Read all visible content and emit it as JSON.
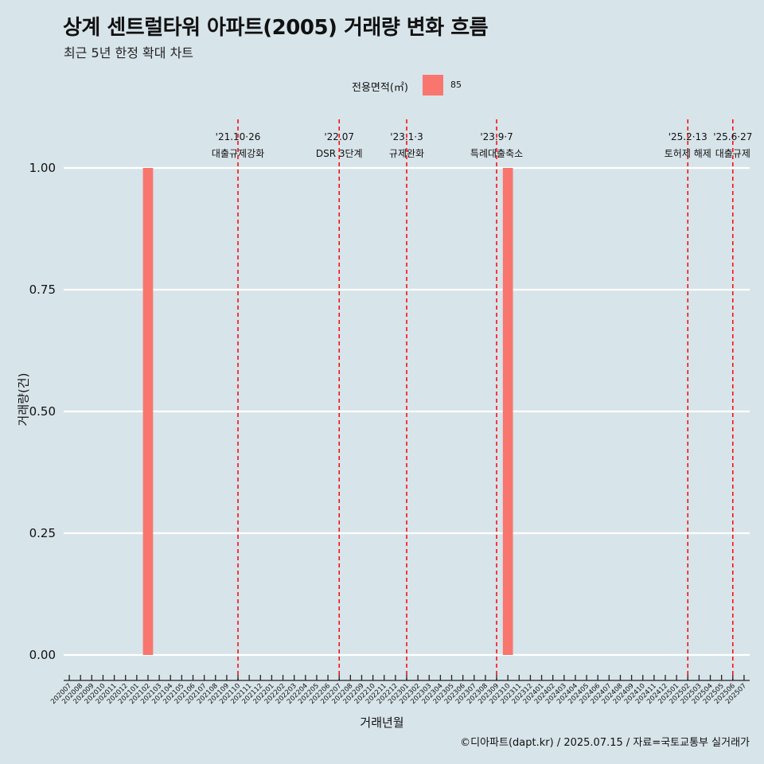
{
  "title": "상계 센트럴타워 아파트(2005) 거래량 변화 흐름",
  "subtitle": "최근 5년 한정 확대 차트",
  "legend": {
    "title": "전용면적(㎡)",
    "label": "85"
  },
  "caption": "©디아파트(dapt.kr) / 2025.07.15 / 자료=국토교통부 실거래가",
  "colors": {
    "background": "#d7e4ea",
    "bar": "#f8766d",
    "event_line": "#ff0000",
    "grid": "#ffffff"
  },
  "chart_data": {
    "type": "bar",
    "xlabel": "거래년월",
    "ylabel": "거래량(건)",
    "ylim": [
      0,
      1
    ],
    "yticks": [
      "0.00",
      "0.25",
      "0.50",
      "0.75",
      "1.00"
    ],
    "categories": [
      "202007",
      "202008",
      "202009",
      "202010",
      "202011",
      "202012",
      "202101",
      "202102",
      "202103",
      "202104",
      "202105",
      "202106",
      "202107",
      "202108",
      "202109",
      "202110",
      "202111",
      "202112",
      "202201",
      "202202",
      "202203",
      "202204",
      "202205",
      "202206",
      "202207",
      "202208",
      "202209",
      "202210",
      "202211",
      "202212",
      "202301",
      "202302",
      "202303",
      "202304",
      "202305",
      "202306",
      "202307",
      "202308",
      "202309",
      "202310",
      "202311",
      "202312",
      "202401",
      "202402",
      "202403",
      "202404",
      "202405",
      "202406",
      "202407",
      "202408",
      "202409",
      "202410",
      "202411",
      "202412",
      "202501",
      "202502",
      "202503",
      "202504",
      "202505",
      "202506",
      "202507"
    ],
    "series": [
      {
        "name": "85",
        "points": [
          {
            "x": "202102",
            "y": 1
          },
          {
            "x": "202310",
            "y": 1
          }
        ]
      }
    ],
    "grid": true,
    "legend_position": "top",
    "events": [
      {
        "x": "202110",
        "date": "'21.10·26",
        "label": "대출규제강화"
      },
      {
        "x": "202207",
        "date": "'22.07",
        "label": "DSR 3단계"
      },
      {
        "x": "202301",
        "date": "'23.1·3",
        "label": "규제완화"
      },
      {
        "x": "202309",
        "date": "'23.9·7",
        "label": "특례대출축소"
      },
      {
        "x": "202502",
        "date": "'25.2·13",
        "label": "토허제 해제"
      },
      {
        "x": "202506",
        "date": "'25.6·27",
        "label": "대출규제"
      }
    ]
  }
}
